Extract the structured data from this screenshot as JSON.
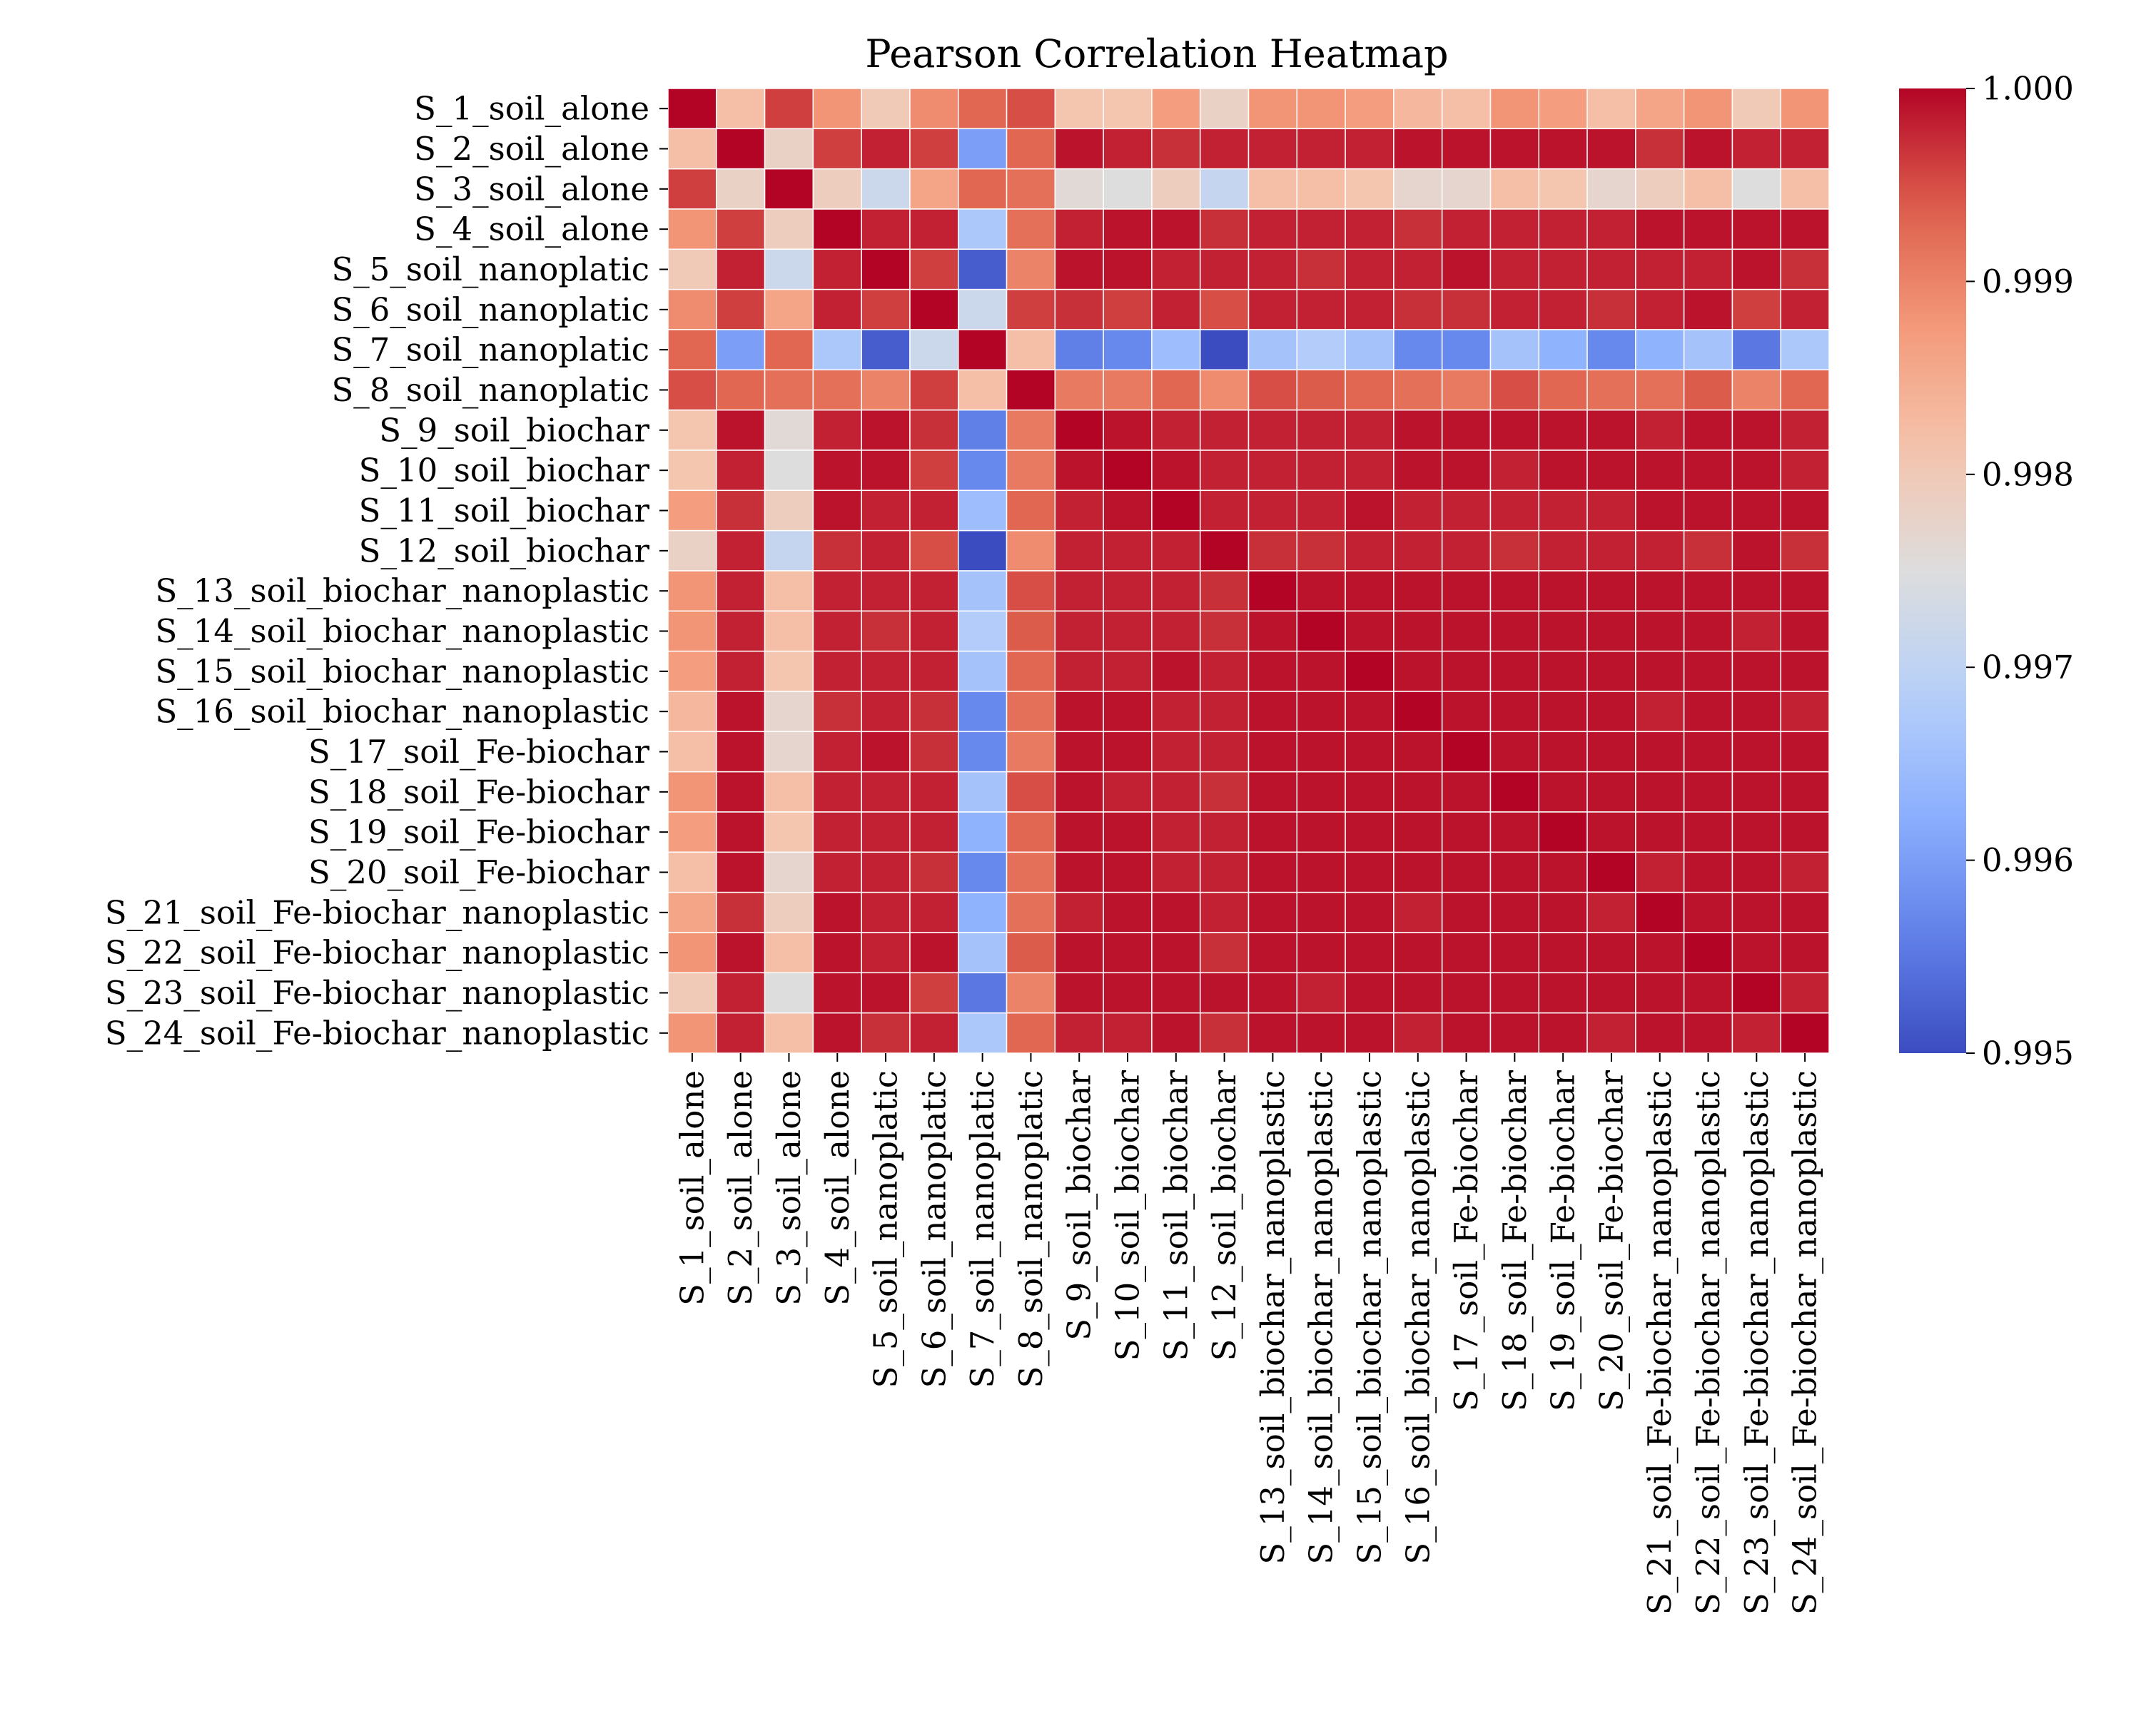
{
  "chart_data": {
    "type": "heatmap",
    "title": "Pearson Correlation Heatmap",
    "xlabel": "",
    "ylabel": "",
    "colormap": "coolwarm",
    "vmin": 0.995,
    "vmax": 1.0,
    "colorbar_ticks": [
      "0.995",
      "0.996",
      "0.997",
      "0.998",
      "0.999",
      "1.000"
    ],
    "grid": "white cell borders",
    "labels": [
      "S_1_soil_alone",
      "S_2_soil_alone",
      "S_3_soil_alone",
      "S_4_soil_alone",
      "S_5_soil_nanoplatic",
      "S_6_soil_nanoplatic",
      "S_7_soil_nanoplatic",
      "S_8_soil_nanoplatic",
      "S_9_soil_biochar",
      "S_10_soil_biochar",
      "S_11_soil_biochar",
      "S_12_soil_biochar",
      "S_13_soil_biochar_nanoplastic",
      "S_14_soil_biochar_nanoplastic",
      "S_15_soil_biochar_nanoplastic",
      "S_16_soil_biochar_nanoplastic",
      "S_17_soil_Fe-biochar",
      "S_18_soil_Fe-biochar",
      "S_19_soil_Fe-biochar",
      "S_20_soil_Fe-biochar",
      "S_21_soil_Fe-biochar_nanoplastic",
      "S_22_soil_Fe-biochar_nanoplastic",
      "S_23_soil_Fe-biochar_nanoplastic",
      "S_24_soil_Fe-biochar_nanoplastic"
    ],
    "matrix": [
      [
        1.0,
        0.9982,
        0.9996,
        0.9988,
        0.998,
        0.9989,
        0.9993,
        0.9995,
        0.9981,
        0.9981,
        0.9987,
        0.9978,
        0.9988,
        0.9988,
        0.9987,
        0.9983,
        0.9982,
        0.9988,
        0.9987,
        0.9982,
        0.9986,
        0.9988,
        0.998,
        0.9988
      ],
      [
        0.9982,
        1.0,
        0.9978,
        0.9996,
        0.9998,
        0.9996,
        0.996,
        0.9993,
        0.9999,
        0.9998,
        0.9997,
        0.9998,
        0.9998,
        0.9998,
        0.9998,
        0.9999,
        0.9999,
        0.9999,
        0.9999,
        0.9999,
        0.9997,
        0.9999,
        0.9998,
        0.9998
      ],
      [
        0.9996,
        0.9978,
        1.0,
        0.9979,
        0.9972,
        0.9986,
        0.9993,
        0.9992,
        0.9976,
        0.9975,
        0.9979,
        0.9971,
        0.9982,
        0.9982,
        0.9981,
        0.9977,
        0.9977,
        0.9982,
        0.9981,
        0.9977,
        0.9979,
        0.9982,
        0.9975,
        0.9982
      ],
      [
        0.9988,
        0.9996,
        0.9979,
        1.0,
        0.9998,
        0.9998,
        0.9967,
        0.9992,
        0.9998,
        0.9999,
        0.9999,
        0.9997,
        0.9998,
        0.9998,
        0.9998,
        0.9997,
        0.9998,
        0.9998,
        0.9998,
        0.9998,
        0.9999,
        0.9999,
        0.9999,
        0.9999
      ],
      [
        0.998,
        0.9998,
        0.9972,
        0.9998,
        1.0,
        0.9996,
        0.9952,
        0.999,
        0.9999,
        0.9999,
        0.9998,
        0.9998,
        0.9998,
        0.9997,
        0.9998,
        0.9998,
        0.9999,
        0.9998,
        0.9998,
        0.9998,
        0.9998,
        0.9998,
        0.9999,
        0.9997
      ],
      [
        0.9989,
        0.9996,
        0.9986,
        0.9998,
        0.9996,
        1.0,
        0.9972,
        0.9996,
        0.9997,
        0.9996,
        0.9998,
        0.9995,
        0.9998,
        0.9998,
        0.9998,
        0.9997,
        0.9997,
        0.9998,
        0.9998,
        0.9997,
        0.9998,
        0.9999,
        0.9996,
        0.9998
      ],
      [
        0.9993,
        0.996,
        0.9993,
        0.9967,
        0.9952,
        0.9972,
        1.0,
        0.9982,
        0.9956,
        0.9957,
        0.9965,
        0.995,
        0.9966,
        0.9968,
        0.9966,
        0.9957,
        0.9957,
        0.9966,
        0.9963,
        0.9957,
        0.9963,
        0.9966,
        0.9955,
        0.9967
      ],
      [
        0.9995,
        0.9993,
        0.9992,
        0.9992,
        0.999,
        0.9996,
        0.9982,
        1.0,
        0.9991,
        0.9991,
        0.9993,
        0.9989,
        0.9995,
        0.9994,
        0.9993,
        0.9992,
        0.9991,
        0.9995,
        0.9993,
        0.9992,
        0.9992,
        0.9994,
        0.999,
        0.9993
      ],
      [
        0.9981,
        0.9999,
        0.9976,
        0.9998,
        0.9999,
        0.9997,
        0.9956,
        0.9991,
        1.0,
        0.9999,
        0.9998,
        0.9998,
        0.9998,
        0.9998,
        0.9998,
        0.9999,
        0.9999,
        0.9999,
        0.9999,
        0.9999,
        0.9998,
        0.9999,
        0.9999,
        0.9998
      ],
      [
        0.9981,
        0.9998,
        0.9975,
        0.9999,
        0.9999,
        0.9996,
        0.9957,
        0.9991,
        0.9999,
        1.0,
        0.9999,
        0.9998,
        0.9998,
        0.9998,
        0.9998,
        0.9999,
        0.9999,
        0.9998,
        0.9999,
        0.9999,
        0.9999,
        0.9999,
        0.9999,
        0.9998
      ],
      [
        0.9987,
        0.9997,
        0.9979,
        0.9999,
        0.9998,
        0.9998,
        0.9965,
        0.9993,
        0.9998,
        0.9999,
        1.0,
        0.9998,
        0.9998,
        0.9998,
        0.9999,
        0.9998,
        0.9998,
        0.9998,
        0.9998,
        0.9998,
        0.9999,
        0.9999,
        0.9999,
        0.9999
      ],
      [
        0.9978,
        0.9998,
        0.9971,
        0.9997,
        0.9998,
        0.9995,
        0.995,
        0.9989,
        0.9998,
        0.9998,
        0.9998,
        1.0,
        0.9997,
        0.9997,
        0.9998,
        0.9998,
        0.9998,
        0.9997,
        0.9998,
        0.9998,
        0.9998,
        0.9997,
        0.9999,
        0.9997
      ],
      [
        0.9988,
        0.9998,
        0.9982,
        0.9998,
        0.9998,
        0.9998,
        0.9966,
        0.9995,
        0.9998,
        0.9998,
        0.9998,
        0.9997,
        1.0,
        0.9999,
        0.9999,
        0.9999,
        0.9999,
        0.9999,
        0.9999,
        0.9999,
        0.9999,
        0.9999,
        0.9999,
        0.9999
      ],
      [
        0.9988,
        0.9998,
        0.9982,
        0.9998,
        0.9997,
        0.9998,
        0.9968,
        0.9994,
        0.9998,
        0.9998,
        0.9998,
        0.9997,
        0.9999,
        1.0,
        0.9999,
        0.9999,
        0.9999,
        0.9999,
        0.9999,
        0.9999,
        0.9999,
        0.9999,
        0.9998,
        0.9999
      ],
      [
        0.9987,
        0.9998,
        0.9981,
        0.9998,
        0.9998,
        0.9998,
        0.9966,
        0.9993,
        0.9998,
        0.9998,
        0.9999,
        0.9998,
        0.9999,
        0.9999,
        1.0,
        0.9999,
        0.9999,
        0.9999,
        0.9999,
        0.9999,
        0.9999,
        0.9999,
        0.9999,
        0.9999
      ],
      [
        0.9983,
        0.9999,
        0.9977,
        0.9997,
        0.9998,
        0.9997,
        0.9957,
        0.9992,
        0.9999,
        0.9999,
        0.9998,
        0.9998,
        0.9999,
        0.9999,
        0.9999,
        1.0,
        0.9999,
        0.9999,
        0.9999,
        0.9999,
        0.9998,
        0.9999,
        0.9999,
        0.9998
      ],
      [
        0.9982,
        0.9999,
        0.9977,
        0.9998,
        0.9999,
        0.9997,
        0.9957,
        0.9991,
        0.9999,
        0.9999,
        0.9998,
        0.9998,
        0.9999,
        0.9999,
        0.9999,
        0.9999,
        1.0,
        0.9999,
        0.9999,
        0.9999,
        0.9999,
        0.9999,
        0.9999,
        0.9999
      ],
      [
        0.9988,
        0.9999,
        0.9982,
        0.9998,
        0.9998,
        0.9998,
        0.9966,
        0.9995,
        0.9999,
        0.9998,
        0.9998,
        0.9997,
        0.9999,
        0.9999,
        0.9999,
        0.9999,
        0.9999,
        1.0,
        0.9999,
        0.9999,
        0.9999,
        0.9999,
        0.9999,
        0.9999
      ],
      [
        0.9987,
        0.9999,
        0.9981,
        0.9998,
        0.9998,
        0.9998,
        0.9963,
        0.9993,
        0.9999,
        0.9999,
        0.9998,
        0.9998,
        0.9999,
        0.9999,
        0.9999,
        0.9999,
        0.9999,
        0.9999,
        1.0,
        0.9999,
        0.9999,
        0.9999,
        0.9999,
        0.9999
      ],
      [
        0.9982,
        0.9999,
        0.9977,
        0.9998,
        0.9998,
        0.9997,
        0.9957,
        0.9992,
        0.9999,
        0.9999,
        0.9998,
        0.9998,
        0.9999,
        0.9999,
        0.9999,
        0.9999,
        0.9999,
        0.9999,
        0.9999,
        1.0,
        0.9998,
        0.9999,
        0.9999,
        0.9998
      ],
      [
        0.9986,
        0.9997,
        0.9979,
        0.9999,
        0.9998,
        0.9998,
        0.9963,
        0.9992,
        0.9998,
        0.9999,
        0.9999,
        0.9998,
        0.9999,
        0.9999,
        0.9999,
        0.9998,
        0.9999,
        0.9999,
        0.9999,
        0.9998,
        1.0,
        0.9999,
        0.9999,
        0.9999
      ],
      [
        0.9988,
        0.9999,
        0.9982,
        0.9999,
        0.9998,
        0.9999,
        0.9966,
        0.9994,
        0.9999,
        0.9999,
        0.9999,
        0.9997,
        0.9999,
        0.9999,
        0.9999,
        0.9999,
        0.9999,
        0.9999,
        0.9999,
        0.9999,
        0.9999,
        1.0,
        0.9999,
        0.9999
      ],
      [
        0.998,
        0.9998,
        0.9975,
        0.9999,
        0.9999,
        0.9996,
        0.9955,
        0.999,
        0.9999,
        0.9999,
        0.9999,
        0.9999,
        0.9999,
        0.9998,
        0.9999,
        0.9999,
        0.9999,
        0.9999,
        0.9999,
        0.9999,
        0.9999,
        0.9999,
        1.0,
        0.9998
      ],
      [
        0.9988,
        0.9998,
        0.9982,
        0.9999,
        0.9997,
        0.9998,
        0.9967,
        0.9993,
        0.9998,
        0.9998,
        0.9999,
        0.9997,
        0.9999,
        0.9999,
        0.9999,
        0.9998,
        0.9999,
        0.9999,
        0.9999,
        0.9998,
        0.9999,
        0.9999,
        0.9998,
        1.0
      ]
    ]
  }
}
